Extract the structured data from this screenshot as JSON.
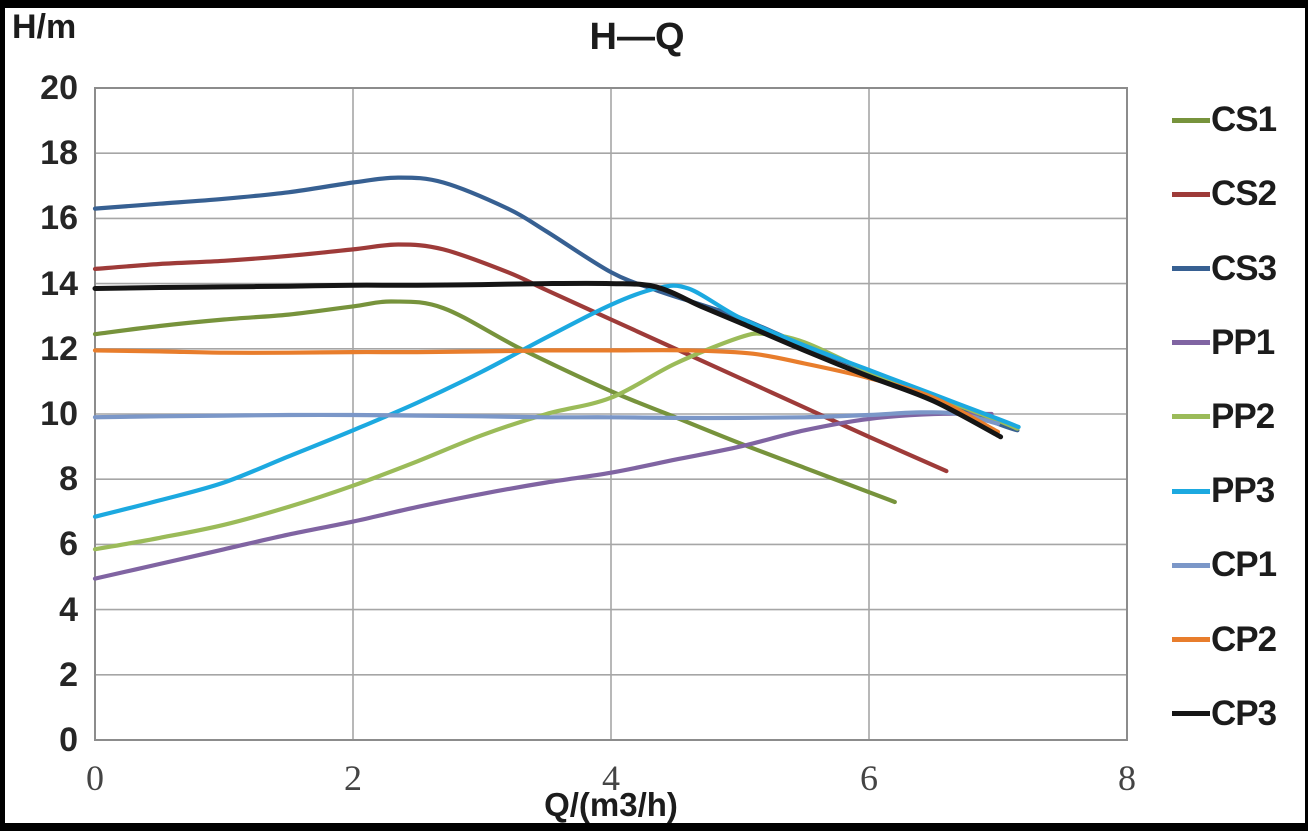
{
  "frame": {
    "border_color": "#000000",
    "background": "#ffffff"
  },
  "chart_data": {
    "type": "line",
    "title": "H—Q",
    "ylabel": "H/m",
    "xlabel": "Q/(m3/h)",
    "xlim": [
      0,
      8
    ],
    "ylim": [
      0,
      20
    ],
    "x_ticks": [
      0,
      2,
      4,
      6,
      8
    ],
    "y_ticks": [
      0,
      2,
      4,
      6,
      8,
      10,
      12,
      14,
      16,
      18,
      20
    ],
    "grid": true,
    "gridline_color": "#a6a6a6",
    "plot_border_color": "#8c8c8c",
    "legend_position": "right",
    "series": [
      {
        "name": "CS1",
        "color": "#77933C",
        "points": [
          [
            0,
            12.45
          ],
          [
            0.5,
            12.7
          ],
          [
            1,
            12.9
          ],
          [
            1.5,
            13.05
          ],
          [
            2,
            13.3
          ],
          [
            2.3,
            13.45
          ],
          [
            2.7,
            13.25
          ],
          [
            3.3,
            12.0
          ],
          [
            4,
            10.7
          ],
          [
            4.5,
            9.9
          ],
          [
            5,
            9.1
          ],
          [
            5.5,
            8.35
          ],
          [
            6,
            7.6
          ],
          [
            6.2,
            7.3
          ]
        ]
      },
      {
        "name": "CS2",
        "color": "#9E3B39",
        "points": [
          [
            0,
            14.45
          ],
          [
            0.5,
            14.6
          ],
          [
            1,
            14.7
          ],
          [
            1.5,
            14.85
          ],
          [
            2,
            15.05
          ],
          [
            2.35,
            15.2
          ],
          [
            2.7,
            15.05
          ],
          [
            3.2,
            14.35
          ],
          [
            3.5,
            13.8
          ],
          [
            4,
            12.9
          ],
          [
            4.5,
            12.0
          ],
          [
            5,
            11.1
          ],
          [
            5.5,
            10.2
          ],
          [
            6,
            9.3
          ],
          [
            6.6,
            8.25
          ]
        ]
      },
      {
        "name": "CS3",
        "color": "#376092",
        "points": [
          [
            0,
            16.3
          ],
          [
            0.5,
            16.45
          ],
          [
            1,
            16.6
          ],
          [
            1.5,
            16.8
          ],
          [
            2,
            17.1
          ],
          [
            2.35,
            17.25
          ],
          [
            2.7,
            17.1
          ],
          [
            3.2,
            16.3
          ],
          [
            3.5,
            15.6
          ],
          [
            4,
            14.35
          ],
          [
            4.35,
            13.8
          ],
          [
            4.7,
            13.35
          ],
          [
            5,
            12.95
          ],
          [
            5.5,
            12.1
          ],
          [
            6,
            11.3
          ],
          [
            6.5,
            10.5
          ],
          [
            7,
            9.7
          ],
          [
            7.15,
            9.5
          ]
        ]
      },
      {
        "name": "PP1",
        "color": "#8064A2",
        "points": [
          [
            0,
            4.95
          ],
          [
            0.5,
            5.4
          ],
          [
            1,
            5.85
          ],
          [
            1.5,
            6.3
          ],
          [
            2,
            6.7
          ],
          [
            2.5,
            7.15
          ],
          [
            3,
            7.55
          ],
          [
            3.5,
            7.9
          ],
          [
            4,
            8.2
          ],
          [
            4.5,
            8.6
          ],
          [
            5,
            9.0
          ],
          [
            5.5,
            9.5
          ],
          [
            6,
            9.85
          ],
          [
            6.5,
            10.0
          ],
          [
            6.95,
            10.0
          ]
        ]
      },
      {
        "name": "PP2",
        "color": "#9BBB59",
        "points": [
          [
            0,
            5.85
          ],
          [
            0.5,
            6.2
          ],
          [
            1,
            6.6
          ],
          [
            1.5,
            7.15
          ],
          [
            2,
            7.8
          ],
          [
            2.5,
            8.55
          ],
          [
            3,
            9.35
          ],
          [
            3.5,
            10.0
          ],
          [
            4,
            10.5
          ],
          [
            4.5,
            11.55
          ],
          [
            5,
            12.35
          ],
          [
            5.2,
            12.45
          ],
          [
            5.5,
            12.2
          ],
          [
            6,
            11.3
          ],
          [
            6.5,
            10.55
          ],
          [
            7,
            9.8
          ],
          [
            7.15,
            9.55
          ]
        ]
      },
      {
        "name": "PP3",
        "color": "#1CA9E0",
        "points": [
          [
            0,
            6.85
          ],
          [
            0.5,
            7.35
          ],
          [
            1,
            7.9
          ],
          [
            1.5,
            8.7
          ],
          [
            2,
            9.5
          ],
          [
            2.5,
            10.35
          ],
          [
            3,
            11.3
          ],
          [
            3.5,
            12.35
          ],
          [
            4,
            13.35
          ],
          [
            4.35,
            13.85
          ],
          [
            4.6,
            13.85
          ],
          [
            5,
            12.95
          ],
          [
            5.5,
            12.1
          ],
          [
            6,
            11.35
          ],
          [
            6.5,
            10.6
          ],
          [
            7,
            9.85
          ],
          [
            7.16,
            9.6
          ]
        ]
      },
      {
        "name": "CP1",
        "color": "#7B97C8",
        "points": [
          [
            0,
            9.9
          ],
          [
            0.5,
            9.93
          ],
          [
            1,
            9.95
          ],
          [
            1.5,
            9.97
          ],
          [
            2,
            9.97
          ],
          [
            2.5,
            9.95
          ],
          [
            3,
            9.93
          ],
          [
            3.5,
            9.9
          ],
          [
            4,
            9.9
          ],
          [
            4.5,
            9.88
          ],
          [
            5,
            9.88
          ],
          [
            5.5,
            9.9
          ],
          [
            6,
            9.97
          ],
          [
            6.4,
            10.05
          ],
          [
            6.7,
            10.0
          ],
          [
            7.0,
            9.7
          ]
        ]
      },
      {
        "name": "CP2",
        "color": "#E87D2C",
        "points": [
          [
            0,
            11.95
          ],
          [
            0.5,
            11.92
          ],
          [
            1,
            11.88
          ],
          [
            1.5,
            11.88
          ],
          [
            2,
            11.9
          ],
          [
            2.5,
            11.9
          ],
          [
            3,
            11.92
          ],
          [
            3.5,
            11.95
          ],
          [
            4,
            11.95
          ],
          [
            4.6,
            11.95
          ],
          [
            5.1,
            11.85
          ],
          [
            5.5,
            11.55
          ],
          [
            6,
            11.1
          ],
          [
            6.5,
            10.5
          ],
          [
            7,
            9.45
          ]
        ]
      },
      {
        "name": "CP3",
        "color": "#151515",
        "points": [
          [
            0,
            13.85
          ],
          [
            0.5,
            13.88
          ],
          [
            1,
            13.9
          ],
          [
            1.5,
            13.92
          ],
          [
            2,
            13.95
          ],
          [
            2.5,
            13.95
          ],
          [
            3,
            13.97
          ],
          [
            3.5,
            14.0
          ],
          [
            4,
            14.0
          ],
          [
            4.35,
            13.9
          ],
          [
            4.7,
            13.3
          ],
          [
            5,
            12.8
          ],
          [
            5.5,
            11.95
          ],
          [
            6,
            11.15
          ],
          [
            6.5,
            10.4
          ],
          [
            7.02,
            9.3
          ]
        ]
      }
    ]
  }
}
